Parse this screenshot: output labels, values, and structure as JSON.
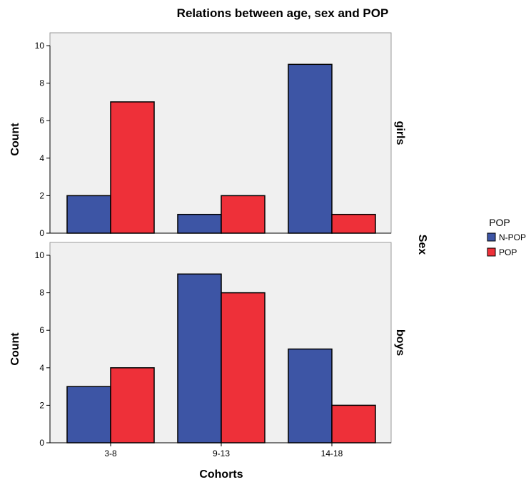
{
  "chart_data": {
    "type": "bar",
    "title": "Relations between age, sex and POP",
    "xlabel": "Cohorts",
    "ylabel": "Count",
    "facet_label": "Sex",
    "categories": [
      "3-8",
      "9-13",
      "14-18"
    ],
    "ylim": [
      0,
      10
    ],
    "yticks": [
      "0",
      "2",
      "4",
      "6",
      "8",
      "10"
    ],
    "legend": {
      "title": "POP",
      "position": "right",
      "entries": [
        {
          "label": "N-POP",
          "color": "#3d55a5"
        },
        {
          "label": "POP",
          "color": "#ee3039"
        }
      ]
    },
    "panels": [
      {
        "label": "girls",
        "series": [
          {
            "name": "N-POP",
            "values": [
              2,
              1,
              9
            ]
          },
          {
            "name": "POP",
            "values": [
              7,
              2,
              1
            ]
          }
        ]
      },
      {
        "label": "boys",
        "series": [
          {
            "name": "N-POP",
            "values": [
              3,
              9,
              5
            ]
          },
          {
            "name": "POP",
            "values": [
              4,
              8,
              2
            ]
          }
        ]
      }
    ],
    "colors": {
      "n_pop": "#3d55a5",
      "pop": "#ee3039",
      "plot_background": "#f0f0f0"
    },
    "grid": false
  }
}
